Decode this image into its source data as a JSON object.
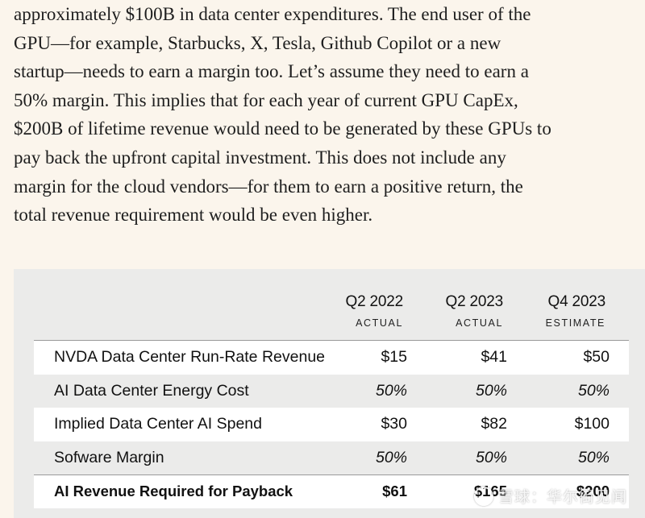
{
  "article": {
    "lines": [
      "approximately $100B in data center expenditures. The end user of the",
      "GPU—for example, Starbucks, X, Tesla, Github Copilot or a new",
      "startup—needs to earn a margin too. Let’s assume they need to earn a",
      "50% margin. This implies that for each year of current GPU CapEx,",
      "$200B of lifetime revenue would need to be generated by these GPUs to",
      "pay back the upfront capital investment. This does not include any",
      "margin for the cloud vendors—for them to earn a positive return, the",
      "total revenue requirement would be even higher."
    ]
  },
  "table": {
    "columns": [
      {
        "period": "Q2 2022",
        "type": "ACTUAL"
      },
      {
        "period": "Q2 2023",
        "type": "ACTUAL"
      },
      {
        "period": "Q4 2023",
        "type": "ESTIMATE"
      }
    ],
    "rows": [
      {
        "label": "NVDA Data Center Run-Rate Revenue",
        "values": [
          "$15",
          "$41",
          "$50"
        ]
      },
      {
        "label": "AI Data Center Energy Cost",
        "values": [
          "50%",
          "50%",
          "50%"
        ]
      },
      {
        "label": "Implied Data Center AI Spend",
        "values": [
          "$30",
          "$82",
          "$100"
        ]
      },
      {
        "label": "Sofware Margin",
        "values": [
          "50%",
          "50%",
          "50%"
        ]
      },
      {
        "label": "AI Revenue Required for Payback",
        "values": [
          "$61",
          "$165",
          "$200"
        ]
      }
    ]
  },
  "watermark": {
    "text": "雪球：华尔街见闻"
  },
  "colors": {
    "page_bg": "#fbf5ec",
    "table_bg": "#ebebea",
    "row_highlight": "#ffffff"
  }
}
